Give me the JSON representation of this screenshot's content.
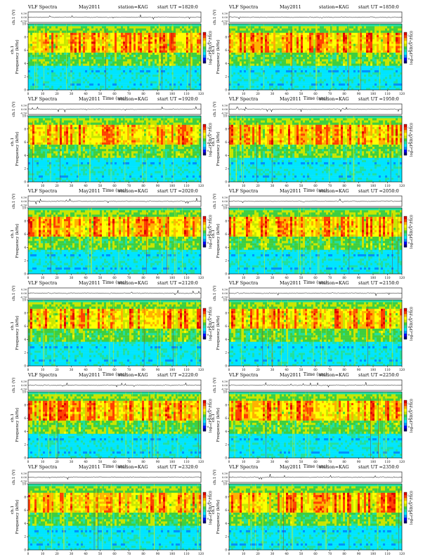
{
  "panel_header": {
    "left": "VLF Spectra",
    "date": "May2011",
    "station": "station=KAG",
    "start_prefix": "start  UT  ="
  },
  "panels": [
    {
      "start_ut": "1820:0"
    },
    {
      "start_ut": "1850:0"
    },
    {
      "start_ut": "1920:0"
    },
    {
      "start_ut": "1950:0"
    },
    {
      "start_ut": "2020:0"
    },
    {
      "start_ut": "2050:0"
    },
    {
      "start_ut": "2120:0"
    },
    {
      "start_ut": "2150:0"
    },
    {
      "start_ut": "2220:0"
    },
    {
      "start_ut": "2250:0"
    },
    {
      "start_ut": "2320:0"
    },
    {
      "start_ut": "2350:0"
    }
  ],
  "chart_data": {
    "type": "heatmap",
    "layout": "6 rows x 2 columns of spectrogram panels",
    "xlabel": "Time  (sec)",
    "x_ticks": [
      "0",
      "10",
      "20",
      "30",
      "40",
      "50",
      "60",
      "70",
      "80",
      "90",
      "100",
      "110",
      "120"
    ],
    "xlim": [
      0,
      120
    ],
    "ylabel_spectrogram": "Frequency  (kHz)",
    "y_ticks_spectrogram": [
      "0",
      "2",
      "4",
      "6",
      "8",
      "10"
    ],
    "ylim_spectrogram": [
      0,
      10
    ],
    "ylabel_waveform": "ch.1 (V)",
    "y_ticks_waveform": [
      "0.50",
      "0.00",
      "-0.50"
    ],
    "ylim_waveform": [
      -0.5,
      0.5
    ],
    "channel_label": "ch.1",
    "colorbar_label": "log₁₀(PSD/(V²/Hz))",
    "colorbar_ticks": [
      "-2",
      "-4",
      "-6",
      "-8"
    ],
    "colormap": [
      "#08007a",
      "#0000ff",
      "#0090ff",
      "#00e5ff",
      "#20e0a0",
      "#3fcf3f",
      "#c8e600",
      "#ffff00",
      "#ffb000",
      "#ff4000",
      "#e00000"
    ],
    "band_structure_note": "intense emission between ~5.5 and ~9 kHz, cutoff near 9.5 kHz, weaker background below 5 kHz"
  }
}
